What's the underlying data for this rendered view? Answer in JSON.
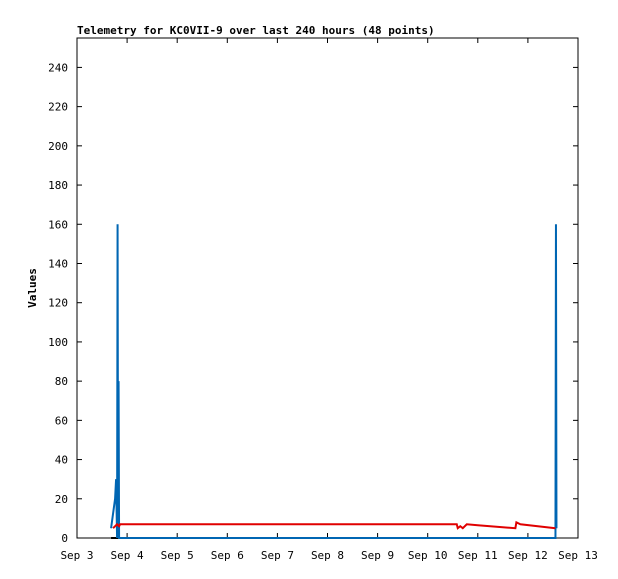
{
  "chart_data": {
    "type": "line",
    "title": "Telemetry for KC0VII-9 over last 240 hours (48 points)",
    "y_label": "Values",
    "xlim": [
      3,
      13
    ],
    "xticks": [
      {
        "value": 3,
        "label": "Sep 3"
      },
      {
        "value": 4,
        "label": "Sep 4"
      },
      {
        "value": 5,
        "label": "Sep 5"
      },
      {
        "value": 6,
        "label": "Sep 6"
      },
      {
        "value": 7,
        "label": "Sep 7"
      },
      {
        "value": 8,
        "label": "Sep 8"
      },
      {
        "value": 9,
        "label": "Sep 9"
      },
      {
        "value": 10,
        "label": "Sep 10"
      },
      {
        "value": 11,
        "label": "Sep 11"
      },
      {
        "value": 12,
        "label": "Sep 12"
      },
      {
        "value": 13,
        "label": "Sep 13"
      }
    ],
    "ylim": [
      0,
      255
    ],
    "yticks": [
      0,
      20,
      40,
      60,
      80,
      100,
      120,
      140,
      160,
      180,
      200,
      220,
      240
    ],
    "series": [
      {
        "color": "#000000",
        "x": [
          3.68,
          12.56
        ],
        "values": [
          0,
          0
        ]
      },
      {
        "color": "#0066b3",
        "x": [
          3.68,
          3.76,
          3.78,
          3.8,
          3.81,
          3.82,
          3.83,
          3.84,
          12.55,
          12.56,
          12.57
        ],
        "values": [
          5,
          20,
          30,
          0,
          160,
          0,
          80,
          0,
          0,
          160,
          5
        ]
      },
      {
        "color": "#e00000",
        "x": [
          3.72,
          3.8,
          3.84,
          3.86,
          10.58,
          10.6,
          10.65,
          10.7,
          10.78,
          11.0,
          11.75,
          11.77,
          11.85,
          12.55
        ],
        "values": [
          5,
          7,
          6,
          7,
          7,
          5,
          6,
          5,
          7,
          6.5,
          5,
          8,
          7,
          5
        ]
      }
    ]
  }
}
